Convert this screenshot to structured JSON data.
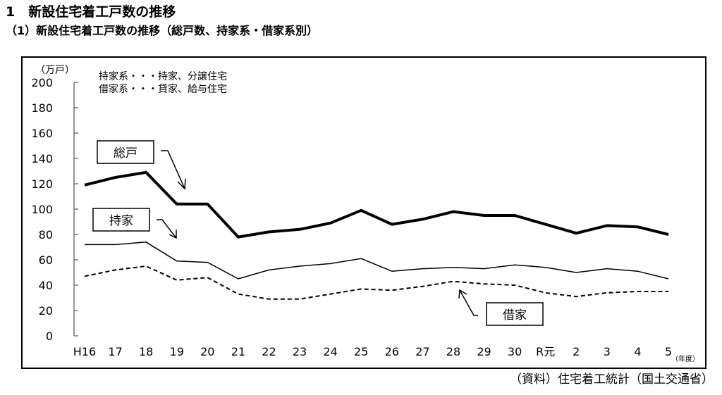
{
  "title": "1　新設住宅着工戸数の推移",
  "subtitle": "（1）新設住宅着工戸数の推移（総戸数、持家系・借家系別）",
  "source": "（資料）住宅着工統計（国土交通省）",
  "chart_data": {
    "type": "line",
    "ylabel": "（万戸）",
    "xlabel": "（年度）",
    "ylim": [
      0,
      200
    ],
    "yticks": [
      0,
      20,
      40,
      60,
      80,
      100,
      120,
      140,
      160,
      180,
      200
    ],
    "grid": false,
    "notes": [
      "持家系・・・持家、分譲住宅",
      "借家系・・・貸家、給与住宅"
    ],
    "categories": [
      "H16",
      "17",
      "18",
      "19",
      "20",
      "21",
      "22",
      "23",
      "24",
      "25",
      "26",
      "27",
      "28",
      "29",
      "30",
      "R元",
      "2",
      "3",
      "4",
      "5"
    ],
    "series": [
      {
        "name": "総戸",
        "style": "thick",
        "values": [
          119,
          125,
          129,
          104,
          104,
          78,
          82,
          84,
          89,
          99,
          88,
          92,
          98,
          95,
          95,
          88,
          81,
          87,
          86,
          80
        ]
      },
      {
        "name": "持家",
        "style": "thin",
        "values": [
          72,
          72,
          74,
          59,
          58,
          45,
          52,
          55,
          57,
          61,
          51,
          53,
          54,
          53,
          56,
          54,
          50,
          53,
          51,
          45
        ]
      },
      {
        "name": "借家",
        "style": "dashed",
        "values": [
          47,
          52,
          55,
          44,
          46,
          33,
          29,
          29,
          33,
          37,
          36,
          39,
          43,
          41,
          40,
          34,
          31,
          34,
          35,
          35
        ]
      }
    ]
  }
}
